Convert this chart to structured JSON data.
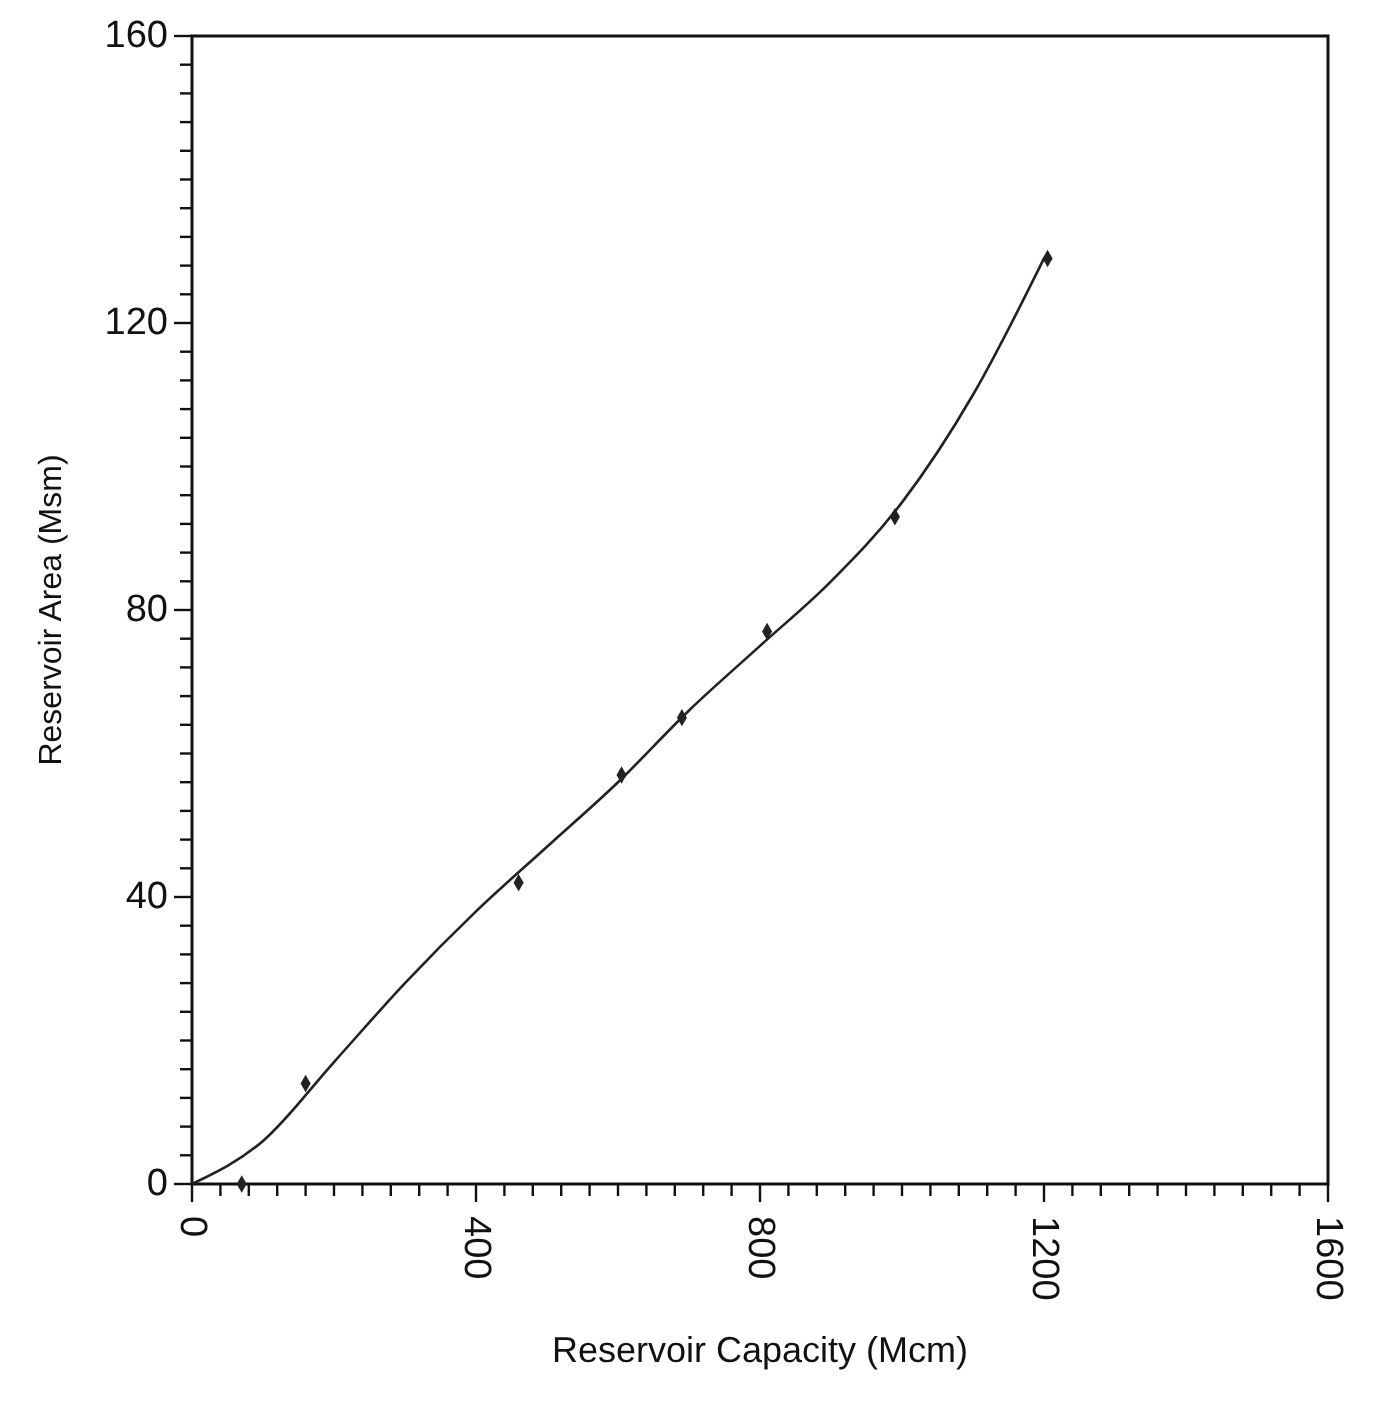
{
  "chart_data": {
    "type": "scatter",
    "xlabel": "Reservoir Capacity (Mcm)",
    "ylabel": "Reservoir Area (Msm)",
    "xlim": [
      0,
      1600
    ],
    "ylim": [
      0,
      160
    ],
    "xticks": [
      0,
      {
        "value": 40,
        "label": null
      },
      {
        "value": 80,
        "label": null
      },
      {
        "value": 120,
        "label": null
      },
      {
        "value": 160,
        "label": null
      },
      {
        "value": 200,
        "label": null
      },
      {
        "value": 240,
        "label": null
      },
      {
        "value": 280,
        "label": null
      },
      {
        "value": 320,
        "label": null
      },
      {
        "value": 360,
        "label": null
      },
      400,
      {
        "value": 440,
        "label": null
      },
      {
        "value": 480,
        "label": null
      },
      {
        "value": 520,
        "label": null
      },
      {
        "value": 560,
        "label": null
      },
      {
        "value": 600,
        "label": null
      },
      {
        "value": 640,
        "label": null
      },
      {
        "value": 680,
        "label": null
      },
      {
        "value": 720,
        "label": null
      },
      {
        "value": 760,
        "label": null
      },
      800,
      {
        "value": 840,
        "label": null
      },
      {
        "value": 880,
        "label": null
      },
      {
        "value": 920,
        "label": null
      },
      {
        "value": 960,
        "label": null
      },
      {
        "value": 1000,
        "label": null
      },
      {
        "value": 1040,
        "label": null
      },
      {
        "value": 1080,
        "label": null
      },
      {
        "value": 1120,
        "label": null
      },
      {
        "value": 1160,
        "label": null
      },
      1200,
      {
        "value": 1240,
        "label": null
      },
      {
        "value": 1280,
        "label": null
      },
      {
        "value": 1320,
        "label": null
      },
      {
        "value": 1360,
        "label": null
      },
      {
        "value": 1400,
        "label": null
      },
      {
        "value": 1440,
        "label": null
      },
      {
        "value": 1480,
        "label": null
      },
      {
        "value": 1520,
        "label": null
      },
      {
        "value": 1560,
        "label": null
      },
      1600
    ],
    "yticks": [
      0,
      {
        "value": 4,
        "label": null
      },
      {
        "value": 8,
        "label": null
      },
      {
        "value": 12,
        "label": null
      },
      {
        "value": 16,
        "label": null
      },
      {
        "value": 20,
        "label": null
      },
      {
        "value": 24,
        "label": null
      },
      {
        "value": 28,
        "label": null
      },
      {
        "value": 32,
        "label": null
      },
      {
        "value": 36,
        "label": null
      },
      40,
      {
        "value": 44,
        "label": null
      },
      {
        "value": 48,
        "label": null
      },
      {
        "value": 52,
        "label": null
      },
      {
        "value": 56,
        "label": null
      },
      {
        "value": 60,
        "label": null
      },
      {
        "value": 64,
        "label": null
      },
      {
        "value": 68,
        "label": null
      },
      {
        "value": 72,
        "label": null
      },
      {
        "value": 76,
        "label": null
      },
      80,
      {
        "value": 84,
        "label": null
      },
      {
        "value": 88,
        "label": null
      },
      {
        "value": 92,
        "label": null
      },
      {
        "value": 96,
        "label": null
      },
      {
        "value": 100,
        "label": null
      },
      {
        "value": 104,
        "label": null
      },
      {
        "value": 108,
        "label": null
      },
      {
        "value": 112,
        "label": null
      },
      {
        "value": 116,
        "label": null
      },
      120,
      {
        "value": 124,
        "label": null
      },
      {
        "value": 128,
        "label": null
      },
      {
        "value": 132,
        "label": null
      },
      {
        "value": 136,
        "label": null
      },
      {
        "value": 140,
        "label": null
      },
      {
        "value": 144,
        "label": null
      },
      {
        "value": 148,
        "label": null
      },
      {
        "value": 152,
        "label": null
      },
      {
        "value": 156,
        "label": null
      },
      160
    ],
    "grid": false,
    "marker": "diamond",
    "series": [
      {
        "color": "#222222",
        "x": [
          70,
          160,
          460,
          605,
          690,
          810,
          990,
          1205
        ],
        "values": [
          0,
          14,
          42,
          57,
          65,
          77,
          93,
          129
        ]
      },
      {
        "type": "line",
        "color": "#222222",
        "marker": "none",
        "x": [
          0,
          100,
          200,
          300,
          400,
          500,
          600,
          700,
          800,
          900,
          1000,
          1100,
          1200
        ],
        "values": [
          0,
          6,
          17,
          28,
          38,
          47,
          56,
          66,
          75,
          84,
          95,
          110,
          129
        ]
      }
    ]
  }
}
